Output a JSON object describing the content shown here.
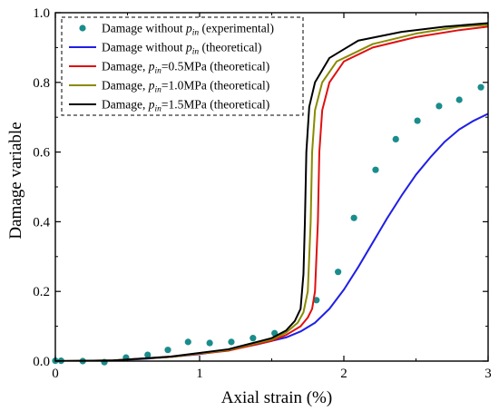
{
  "chart_data": {
    "type": "line",
    "xlabel": "Axial strain (%)",
    "ylabel": "Damage variable",
    "xlim": [
      0,
      3
    ],
    "ylim": [
      0,
      1.0
    ],
    "xticks": [
      "0",
      "1",
      "2",
      "3"
    ],
    "yticks": [
      "0.0",
      "0.2",
      "0.4",
      "0.6",
      "0.8",
      "1.0"
    ],
    "grid": false,
    "legend_position": "top-left",
    "colors": {
      "experimental": "#1a8c8c",
      "no_pin": "#1f1fe6",
      "p05": "#e01010",
      "p10": "#8a8a00",
      "p15": "#000000"
    },
    "series": [
      {
        "name": "Damage without p_in (experimental)",
        "legend": {
          "pre": "Damage without ",
          "italic": "p",
          "sub": "in",
          "post": " (experimental)"
        },
        "kind": "scatter",
        "color_key": "experimental",
        "points": [
          [
            0.0,
            0.001
          ],
          [
            0.04,
            0.001
          ],
          [
            0.19,
            0.0
          ],
          [
            0.34,
            -0.003
          ],
          [
            0.49,
            0.01
          ],
          [
            0.64,
            0.018
          ],
          [
            0.78,
            0.032
          ],
          [
            0.92,
            0.055
          ],
          [
            1.07,
            0.052
          ],
          [
            1.22,
            0.055
          ],
          [
            1.37,
            0.066
          ],
          [
            1.52,
            0.08
          ],
          [
            1.81,
            0.175
          ],
          [
            1.96,
            0.256
          ],
          [
            2.07,
            0.411
          ],
          [
            2.22,
            0.549
          ],
          [
            2.36,
            0.637
          ],
          [
            2.51,
            0.69
          ],
          [
            2.66,
            0.732
          ],
          [
            2.8,
            0.75
          ],
          [
            2.95,
            0.786
          ]
        ]
      },
      {
        "name": "Damage without p_in (theoretical)",
        "legend": {
          "pre": "Damage without ",
          "italic": "p",
          "sub": "in",
          "post": " (theoretical)"
        },
        "kind": "line",
        "color_key": "no_pin",
        "points": [
          [
            0.0,
            0.0
          ],
          [
            0.2,
            0.0
          ],
          [
            0.4,
            0.002
          ],
          [
            0.6,
            0.006
          ],
          [
            0.8,
            0.012
          ],
          [
            1.0,
            0.02
          ],
          [
            1.2,
            0.032
          ],
          [
            1.4,
            0.048
          ],
          [
            1.6,
            0.068
          ],
          [
            1.7,
            0.085
          ],
          [
            1.8,
            0.11
          ],
          [
            1.9,
            0.15
          ],
          [
            2.0,
            0.205
          ],
          [
            2.1,
            0.27
          ],
          [
            2.2,
            0.34
          ],
          [
            2.3,
            0.41
          ],
          [
            2.4,
            0.475
          ],
          [
            2.5,
            0.535
          ],
          [
            2.6,
            0.585
          ],
          [
            2.7,
            0.63
          ],
          [
            2.8,
            0.665
          ],
          [
            2.9,
            0.69
          ],
          [
            3.0,
            0.71
          ]
        ]
      },
      {
        "name": "Damage, p_in=0.5MPa (theoretical)",
        "legend": {
          "pre": "Damage, ",
          "italic": "p",
          "sub": "in",
          "post": "=0.5MPa (theoretical)"
        },
        "kind": "line",
        "color_key": "p05",
        "points": [
          [
            0.0,
            0.0
          ],
          [
            0.4,
            0.002
          ],
          [
            0.8,
            0.012
          ],
          [
            1.2,
            0.03
          ],
          [
            1.5,
            0.058
          ],
          [
            1.6,
            0.075
          ],
          [
            1.7,
            0.1
          ],
          [
            1.75,
            0.125
          ],
          [
            1.78,
            0.15
          ],
          [
            1.8,
            0.2
          ],
          [
            1.82,
            0.4
          ],
          [
            1.83,
            0.6
          ],
          [
            1.85,
            0.72
          ],
          [
            1.9,
            0.8
          ],
          [
            2.0,
            0.86
          ],
          [
            2.2,
            0.9
          ],
          [
            2.5,
            0.93
          ],
          [
            2.8,
            0.95
          ],
          [
            3.0,
            0.96
          ]
        ]
      },
      {
        "name": "Damage, p_in=1.0MPa (theoretical)",
        "legend": {
          "pre": "Damage, ",
          "italic": "p",
          "sub": "in",
          "post": "=1.0MPa (theoretical)"
        },
        "kind": "line",
        "color_key": "p10",
        "points": [
          [
            0.0,
            0.0
          ],
          [
            0.4,
            0.002
          ],
          [
            0.8,
            0.012
          ],
          [
            1.2,
            0.032
          ],
          [
            1.5,
            0.062
          ],
          [
            1.6,
            0.082
          ],
          [
            1.68,
            0.11
          ],
          [
            1.72,
            0.14
          ],
          [
            1.75,
            0.2
          ],
          [
            1.77,
            0.4
          ],
          [
            1.78,
            0.6
          ],
          [
            1.8,
            0.72
          ],
          [
            1.85,
            0.8
          ],
          [
            1.95,
            0.86
          ],
          [
            2.2,
            0.91
          ],
          [
            2.5,
            0.94
          ],
          [
            2.8,
            0.96
          ],
          [
            3.0,
            0.965
          ]
        ]
      },
      {
        "name": "Damage, p_in=1.5MPa (theoretical)",
        "legend": {
          "pre": "Damage, ",
          "italic": "p",
          "sub": "in",
          "post": "=1.5MPa (theoretical)"
        },
        "kind": "line",
        "color_key": "p15",
        "points": [
          [
            0.0,
            0.0
          ],
          [
            0.4,
            0.002
          ],
          [
            0.8,
            0.013
          ],
          [
            1.2,
            0.034
          ],
          [
            1.5,
            0.066
          ],
          [
            1.6,
            0.088
          ],
          [
            1.66,
            0.115
          ],
          [
            1.7,
            0.15
          ],
          [
            1.72,
            0.25
          ],
          [
            1.73,
            0.4
          ],
          [
            1.74,
            0.6
          ],
          [
            1.76,
            0.73
          ],
          [
            1.8,
            0.8
          ],
          [
            1.9,
            0.87
          ],
          [
            2.1,
            0.92
          ],
          [
            2.4,
            0.945
          ],
          [
            2.7,
            0.96
          ],
          [
            3.0,
            0.97
          ]
        ]
      }
    ]
  }
}
